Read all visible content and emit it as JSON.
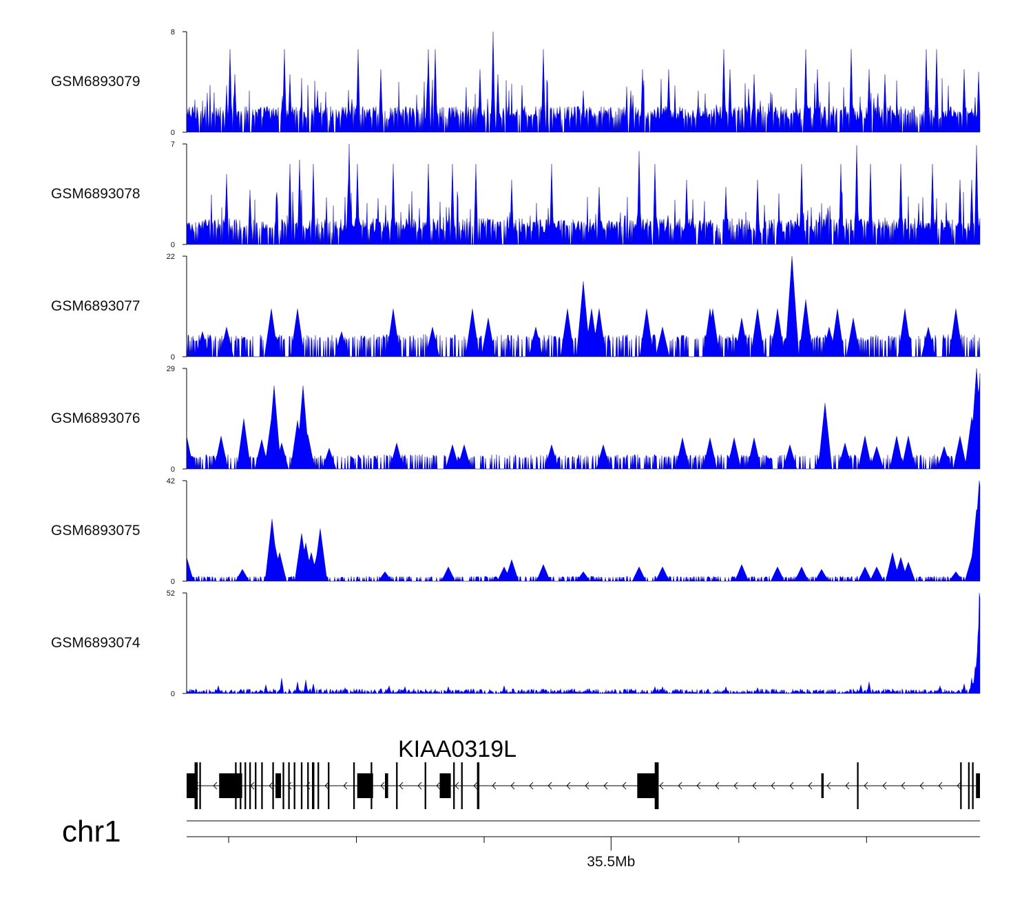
{
  "chart_data": {
    "type": "area",
    "title": "",
    "color": "#0000ff",
    "tracks": [
      {
        "name": "GSM6893079",
        "ymin": 0,
        "ymax": 8,
        "baseline": 1.6,
        "peaks": [
          [
            0.05,
            3.3
          ],
          [
            0.055,
            6.6
          ],
          [
            0.061,
            4.6
          ],
          [
            0.123,
            6.6
          ],
          [
            0.13,
            4.6
          ],
          [
            0.165,
            3.3
          ],
          [
            0.216,
            6.6
          ],
          [
            0.245,
            5.0
          ],
          [
            0.305,
            6.6
          ],
          [
            0.313,
            6.6
          ],
          [
            0.37,
            5.0
          ],
          [
            0.386,
            8.0
          ],
          [
            0.392,
            4.6
          ],
          [
            0.45,
            6.6
          ],
          [
            0.5,
            3.3
          ],
          [
            0.56,
            3.3
          ],
          [
            0.575,
            5.0
          ],
          [
            0.608,
            5.0
          ],
          [
            0.677,
            6.6
          ],
          [
            0.685,
            5.0
          ],
          [
            0.715,
            4.6
          ],
          [
            0.78,
            6.6
          ],
          [
            0.795,
            5.0
          ],
          [
            0.838,
            6.6
          ],
          [
            0.86,
            5.0
          ],
          [
            0.88,
            4.6
          ],
          [
            0.932,
            6.6
          ],
          [
            0.945,
            6.6
          ],
          [
            0.98,
            5.0
          ],
          [
            0.998,
            4.8
          ]
        ]
      },
      {
        "name": "GSM6893078",
        "ymin": 0,
        "ymax": 7,
        "baseline": 1.4,
        "peaks": [
          [
            0.05,
            4.9
          ],
          [
            0.08,
            3.8
          ],
          [
            0.13,
            5.6
          ],
          [
            0.142,
            5.9
          ],
          [
            0.16,
            5.6
          ],
          [
            0.205,
            7.0
          ],
          [
            0.215,
            5.6
          ],
          [
            0.26,
            5.6
          ],
          [
            0.305,
            5.6
          ],
          [
            0.335,
            5.6
          ],
          [
            0.365,
            5.6
          ],
          [
            0.41,
            4.5
          ],
          [
            0.46,
            5.6
          ],
          [
            0.52,
            4.0
          ],
          [
            0.57,
            6.5
          ],
          [
            0.59,
            5.6
          ],
          [
            0.63,
            4.5
          ],
          [
            0.68,
            4.0
          ],
          [
            0.72,
            4.5
          ],
          [
            0.775,
            5.6
          ],
          [
            0.825,
            5.6
          ],
          [
            0.845,
            6.9
          ],
          [
            0.862,
            5.6
          ],
          [
            0.9,
            5.6
          ],
          [
            0.94,
            5.6
          ],
          [
            0.975,
            4.5
          ],
          [
            0.99,
            4.5
          ],
          [
            0.996,
            6.9
          ]
        ]
      },
      {
        "name": "GSM6893077",
        "ymin": 0,
        "ymax": 22,
        "baseline": 3.5,
        "peaks": [
          [
            0.02,
            5.5
          ],
          [
            0.05,
            6.5
          ],
          [
            0.107,
            10.5
          ],
          [
            0.14,
            10.5
          ],
          [
            0.195,
            5.5
          ],
          [
            0.26,
            10.5
          ],
          [
            0.31,
            6.5
          ],
          [
            0.36,
            10.5
          ],
          [
            0.38,
            8.5
          ],
          [
            0.44,
            6.5
          ],
          [
            0.48,
            10.5
          ],
          [
            0.51,
            10.5
          ],
          [
            0.52,
            10.5
          ],
          [
            0.5,
            16.5
          ],
          [
            0.58,
            10.5
          ],
          [
            0.6,
            6.5
          ],
          [
            0.66,
            10.5
          ],
          [
            0.663,
            10.5
          ],
          [
            0.665,
            6.5
          ],
          [
            0.7,
            8.5
          ],
          [
            0.72,
            10.5
          ],
          [
            0.745,
            10.5
          ],
          [
            0.763,
            22.0
          ],
          [
            0.78,
            12.5
          ],
          [
            0.81,
            6.5
          ],
          [
            0.82,
            10.5
          ],
          [
            0.84,
            8.5
          ],
          [
            0.905,
            10.5
          ],
          [
            0.935,
            6.5
          ],
          [
            0.97,
            10.5
          ]
        ]
      },
      {
        "name": "GSM6893076",
        "ymin": 0,
        "ymax": 29,
        "baseline": 3.0,
        "peaks": [
          [
            0.0,
            9.5
          ],
          [
            0.043,
            9.5
          ],
          [
            0.072,
            14.5
          ],
          [
            0.095,
            8.5
          ],
          [
            0.107,
            14.5
          ],
          [
            0.11,
            24.0
          ],
          [
            0.12,
            7.5
          ],
          [
            0.14,
            14.0
          ],
          [
            0.147,
            24.0
          ],
          [
            0.153,
            10.0
          ],
          [
            0.18,
            6.0
          ],
          [
            0.265,
            7.5
          ],
          [
            0.335,
            7.0
          ],
          [
            0.35,
            7.0
          ],
          [
            0.46,
            7.0
          ],
          [
            0.525,
            7.0
          ],
          [
            0.625,
            9.0
          ],
          [
            0.66,
            9.0
          ],
          [
            0.69,
            9.0
          ],
          [
            0.715,
            9.0
          ],
          [
            0.76,
            7.0
          ],
          [
            0.83,
            7.5
          ],
          [
            0.8,
            5.0
          ],
          [
            0.805,
            19.0
          ],
          [
            0.855,
            9.5
          ],
          [
            0.87,
            6.5
          ],
          [
            0.895,
            9.5
          ],
          [
            0.91,
            9.5
          ],
          [
            0.955,
            6.5
          ],
          [
            0.975,
            9.5
          ],
          [
            0.99,
            15.0
          ],
          [
            0.996,
            29.0
          ],
          [
            0.999,
            24.0
          ]
        ]
      },
      {
        "name": "GSM6893075",
        "ymin": 0,
        "ymax": 42,
        "baseline": 1.5,
        "peaks": [
          [
            0.0,
            10.0
          ],
          [
            0.07,
            5.0
          ],
          [
            0.108,
            26.0
          ],
          [
            0.112,
            14.0
          ],
          [
            0.117,
            12.0
          ],
          [
            0.145,
            20.0
          ],
          [
            0.15,
            16.0
          ],
          [
            0.157,
            12.0
          ],
          [
            0.165,
            12.0
          ],
          [
            0.168,
            22.0
          ],
          [
            0.25,
            4.0
          ],
          [
            0.33,
            6.0
          ],
          [
            0.4,
            6.0
          ],
          [
            0.41,
            9.0
          ],
          [
            0.45,
            7.0
          ],
          [
            0.5,
            4.0
          ],
          [
            0.57,
            6.0
          ],
          [
            0.6,
            6.0
          ],
          [
            0.7,
            7.0
          ],
          [
            0.745,
            6.0
          ],
          [
            0.775,
            6.0
          ],
          [
            0.8,
            5.0
          ],
          [
            0.855,
            6.0
          ],
          [
            0.87,
            6.0
          ],
          [
            0.89,
            12.0
          ],
          [
            0.9,
            10.0
          ],
          [
            0.91,
            8.0
          ],
          [
            0.97,
            4.0
          ],
          [
            0.99,
            10.0
          ],
          [
            0.996,
            30.0
          ],
          [
            0.999,
            42.0
          ]
        ]
      },
      {
        "name": "GSM6893074",
        "ymin": 0,
        "ymax": 52,
        "baseline": 1.0,
        "peaks": [
          [
            0.04,
            4.0
          ],
          [
            0.1,
            4.5
          ],
          [
            0.12,
            8.0
          ],
          [
            0.14,
            6.0
          ],
          [
            0.15,
            7.0
          ],
          [
            0.16,
            5.0
          ],
          [
            0.2,
            3.0
          ],
          [
            0.255,
            4.0
          ],
          [
            0.275,
            3.5
          ],
          [
            0.33,
            3.5
          ],
          [
            0.4,
            4.0
          ],
          [
            0.59,
            3.5
          ],
          [
            0.6,
            3.5
          ],
          [
            0.68,
            3.5
          ],
          [
            0.72,
            3.0
          ],
          [
            0.85,
            4.5
          ],
          [
            0.86,
            6.0
          ],
          [
            0.95,
            4.0
          ],
          [
            0.98,
            5.0
          ],
          [
            0.99,
            8.0
          ],
          [
            0.994,
            14.0
          ],
          [
            0.997,
            30.0
          ],
          [
            0.999,
            52.0
          ],
          [
            1.0,
            46.0
          ]
        ]
      }
    ],
    "gene": {
      "name": "KIAA0319L",
      "strand": "-",
      "exons": [
        [
          0.0,
          0.012,
          "thick"
        ],
        [
          0.01,
          0.014,
          "tall"
        ],
        [
          0.016,
          0.018,
          "tall"
        ],
        [
          0.041,
          0.07,
          "thick"
        ],
        [
          0.061,
          0.063,
          "tall"
        ],
        [
          0.067,
          0.069,
          "tall"
        ],
        [
          0.073,
          0.075,
          "tall"
        ],
        [
          0.079,
          0.081,
          "tall"
        ],
        [
          0.086,
          0.088,
          "tall"
        ],
        [
          0.094,
          0.096,
          "tall"
        ],
        [
          0.112,
          0.119,
          "thick"
        ],
        [
          0.108,
          0.11,
          "tall"
        ],
        [
          0.121,
          0.123,
          "tall"
        ],
        [
          0.128,
          0.13,
          "tall"
        ],
        [
          0.135,
          0.137,
          "tall"
        ],
        [
          0.144,
          0.146,
          "tall"
        ],
        [
          0.152,
          0.154,
          "tall"
        ],
        [
          0.158,
          0.161,
          "tall"
        ],
        [
          0.165,
          0.167,
          "tall"
        ],
        [
          0.178,
          0.18,
          "tall"
        ],
        [
          0.215,
          0.235,
          "thick"
        ],
        [
          0.21,
          0.212,
          "tall"
        ],
        [
          0.232,
          0.234,
          "tall"
        ],
        [
          0.25,
          0.254,
          "thick"
        ],
        [
          0.264,
          0.266,
          "tall"
        ],
        [
          0.3,
          0.302,
          "tall"
        ],
        [
          0.319,
          0.333,
          "thick"
        ],
        [
          0.336,
          0.338,
          "tall"
        ],
        [
          0.346,
          0.348,
          "tall"
        ],
        [
          0.366,
          0.369,
          "tall"
        ],
        [
          0.568,
          0.593,
          "thick"
        ],
        [
          0.59,
          0.595,
          "tall"
        ],
        [
          0.8,
          0.803,
          "thick"
        ],
        [
          0.845,
          0.847,
          "tall"
        ],
        [
          0.975,
          0.977,
          "tall"
        ],
        [
          0.985,
          0.987,
          "tall"
        ],
        [
          0.99,
          0.992,
          "tall"
        ],
        [
          0.995,
          1.0,
          "thick"
        ]
      ]
    },
    "x_axis": {
      "chrom": "chr1",
      "labeled_tick": {
        "pos": 0.535,
        "label": "35.5Mb"
      },
      "unlabeled_ticks": [
        0.053,
        0.214,
        0.375,
        0.696,
        0.857
      ]
    }
  }
}
